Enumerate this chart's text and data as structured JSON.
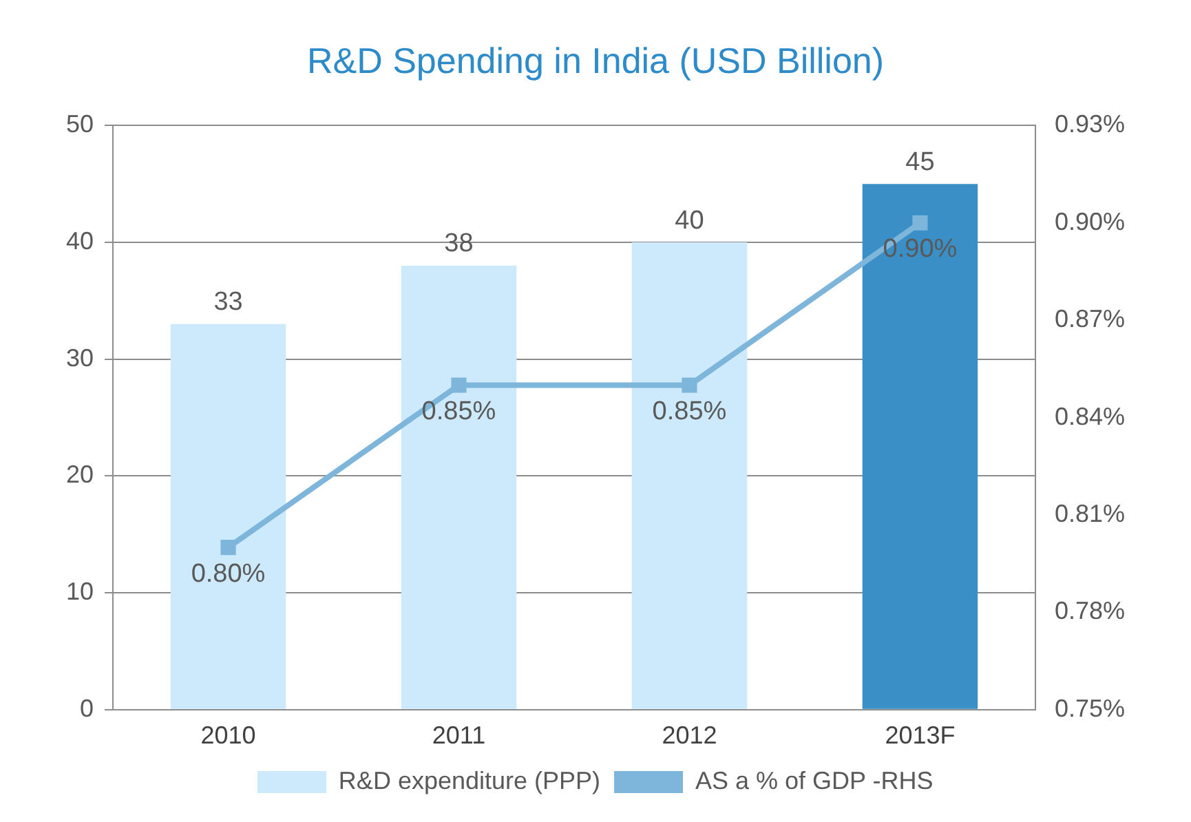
{
  "chart_data": {
    "type": "bar",
    "title": "R&D Spending in India (USD Billion)",
    "categories": [
      "2010",
      "2011",
      "2012",
      "2013F"
    ],
    "series": [
      {
        "name": "R&D expenditure (PPP)",
        "color": "#cdeafc",
        "colors": [
          "#cdeafc",
          "#cdeafc",
          "#cdeafc",
          "#3a90c6"
        ],
        "values": [
          33,
          38,
          40,
          45
        ],
        "value_labels": [
          "33",
          "38",
          "40",
          "45"
        ]
      },
      {
        "name": "AS a % of GDP -RHS",
        "type": "line",
        "axis": "y2",
        "color": "#7db5db",
        "values": [
          0.8,
          0.85,
          0.85,
          0.9
        ],
        "value_labels": [
          "0.80%",
          "0.85%",
          "0.85%",
          "0.90%"
        ]
      }
    ],
    "ylim": [
      0,
      50
    ],
    "yticks": [
      0,
      10,
      20,
      30,
      40,
      50
    ],
    "y2lim": [
      0.75,
      0.93
    ],
    "y2ticks": [
      {
        "value": 0.75,
        "label": "0.75%"
      },
      {
        "value": 0.78,
        "label": "0.78%"
      },
      {
        "value": 0.81,
        "label": "0.81%"
      },
      {
        "value": 0.84,
        "label": "0.84%"
      },
      {
        "value": 0.87,
        "label": "0.87%"
      },
      {
        "value": 0.9,
        "label": "0.90%"
      },
      {
        "value": 0.93,
        "label": "0.93%"
      }
    ],
    "grid": "y",
    "legend": "bottom",
    "marker": "square"
  }
}
